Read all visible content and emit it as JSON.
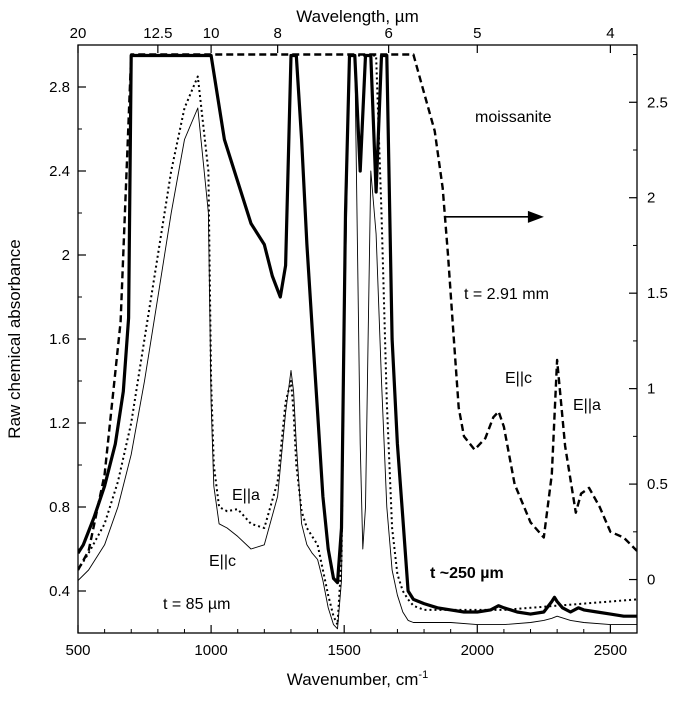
{
  "chart_data": {
    "type": "line",
    "title": "",
    "xlabel": "Wavenumber, cm",
    "xlabel_superscript": "-1",
    "x2label": "Wavelength, µm",
    "ylabel": "Raw chemical absorbance",
    "xlim": [
      500,
      2600
    ],
    "ylim_left": [
      0.2,
      3.0
    ],
    "ylim_right": [
      -0.28,
      2.8
    ],
    "grid": false,
    "x_ticks": [
      "500",
      "1000",
      "1500",
      "2000",
      "2500"
    ],
    "x_tick_values": [
      500,
      1000,
      1500,
      2000,
      2500
    ],
    "x2_ticks": [
      "20",
      "12.5",
      "10",
      "8",
      "6",
      "5",
      "4"
    ],
    "x2_tick_wavenumbers": [
      500,
      800,
      1000,
      1250,
      1667,
      2000,
      2500
    ],
    "y_left_ticks": [
      "0.4",
      "0.8",
      "1.2",
      "1.6",
      "2",
      "2.4",
      "2.8"
    ],
    "y_left_tick_values": [
      0.4,
      0.8,
      1.2,
      1.6,
      2.0,
      2.4,
      2.8
    ],
    "y_right_ticks": [
      "0",
      "0.5",
      "1",
      "1.5",
      "2",
      "2.5"
    ],
    "y_right_tick_values": [
      0,
      0.5,
      1.0,
      1.5,
      2.0,
      2.5
    ],
    "annotations": {
      "sample": "moissanite",
      "thick": "t = 2.91 mm",
      "medium": "t ~250 µm",
      "thin": "t = 85 µm",
      "ellc_top": "E||c",
      "ella_top": "E||a",
      "ella_bottom": "E||a",
      "ellc_bottom": "E||c"
    },
    "series": [
      {
        "style": "thick-solid",
        "axis": "left",
        "x": [
          500,
          520,
          560,
          600,
          640,
          670,
          690,
          700,
          1000,
          1050,
          1100,
          1150,
          1200,
          1230,
          1260,
          1280,
          1300,
          1310,
          1320,
          1340,
          1360,
          1380,
          1400,
          1420,
          1440,
          1460,
          1475,
          1490,
          1505,
          1520,
          1540,
          1560,
          1580,
          1600,
          1620,
          1640,
          1660,
          1680,
          1700,
          1720,
          1740,
          1760,
          1780,
          1800,
          1850,
          1900,
          1950,
          2000,
          2050,
          2080,
          2100,
          2150,
          2200,
          2250,
          2280,
          2290,
          2300,
          2320,
          2350,
          2380,
          2400,
          2450,
          2500,
          2550,
          2600
        ],
        "y": [
          0.58,
          0.62,
          0.75,
          0.9,
          1.1,
          1.35,
          1.7,
          2.95,
          2.95,
          2.55,
          2.35,
          2.15,
          2.05,
          1.9,
          1.8,
          1.95,
          2.95,
          2.95,
          2.95,
          2.55,
          2.05,
          1.65,
          1.25,
          0.85,
          0.6,
          0.46,
          0.44,
          0.7,
          2.2,
          2.95,
          2.95,
          2.4,
          2.95,
          2.95,
          2.3,
          2.95,
          2.95,
          1.6,
          1.1,
          0.75,
          0.4,
          0.36,
          0.35,
          0.34,
          0.32,
          0.31,
          0.3,
          0.3,
          0.31,
          0.33,
          0.32,
          0.3,
          0.29,
          0.3,
          0.35,
          0.37,
          0.35,
          0.32,
          0.3,
          0.32,
          0.31,
          0.3,
          0.29,
          0.28,
          0.28
        ]
      },
      {
        "style": "dashed",
        "axis": "right",
        "x": [
          500,
          540,
          600,
          660,
          700,
          1000,
          1100,
          1200,
          1280,
          1300,
          1350,
          1420,
          1470,
          1520,
          1620,
          1680,
          1760,
          1800,
          1840,
          1870,
          1890,
          1910,
          1930,
          1950,
          1990,
          2030,
          2060,
          2080,
          2100,
          2140,
          2200,
          2250,
          2280,
          2300,
          2330,
          2370,
          2390,
          2420,
          2460,
          2500,
          2550,
          2600
        ],
        "y": [
          0.05,
          0.15,
          0.55,
          1.35,
          2.75,
          2.75,
          2.75,
          2.75,
          2.75,
          2.75,
          2.75,
          2.75,
          2.75,
          2.75,
          2.75,
          2.75,
          2.75,
          2.55,
          2.35,
          2.05,
          1.7,
          1.3,
          0.9,
          0.75,
          0.68,
          0.74,
          0.85,
          0.88,
          0.8,
          0.5,
          0.3,
          0.22,
          0.55,
          1.15,
          0.7,
          0.35,
          0.45,
          0.48,
          0.38,
          0.25,
          0.22,
          0.15
        ]
      },
      {
        "style": "thin-solid",
        "axis": "left",
        "x": [
          500,
          540,
          600,
          650,
          700,
          750,
          800,
          850,
          900,
          950,
          990,
          1000,
          1010,
          1030,
          1060,
          1100,
          1150,
          1200,
          1250,
          1280,
          1300,
          1310,
          1320,
          1340,
          1360,
          1380,
          1400,
          1420,
          1440,
          1460,
          1475,
          1490,
          1505,
          1520,
          1540,
          1560,
          1570,
          1580,
          1590,
          1600,
          1620,
          1640,
          1660,
          1680,
          1700,
          1720,
          1740,
          1760,
          1800,
          1900,
          2000,
          2100,
          2200,
          2250,
          2280,
          2300,
          2350,
          2400,
          2500,
          2600
        ],
        "y": [
          0.45,
          0.5,
          0.62,
          0.8,
          1.05,
          1.4,
          1.8,
          2.2,
          2.55,
          2.7,
          2.2,
          1.3,
          0.9,
          0.72,
          0.7,
          0.66,
          0.6,
          0.62,
          0.85,
          1.25,
          1.45,
          1.35,
          1.1,
          0.72,
          0.62,
          0.58,
          0.55,
          0.45,
          0.32,
          0.24,
          0.22,
          0.45,
          1.9,
          2.95,
          2.95,
          1.1,
          0.6,
          0.8,
          1.6,
          2.4,
          2.1,
          1.4,
          0.8,
          0.5,
          0.38,
          0.3,
          0.26,
          0.25,
          0.25,
          0.25,
          0.24,
          0.24,
          0.25,
          0.26,
          0.27,
          0.28,
          0.26,
          0.25,
          0.24,
          0.24
        ]
      },
      {
        "style": "dotted",
        "axis": "left",
        "x": [
          500,
          540,
          600,
          650,
          700,
          750,
          800,
          850,
          900,
          950,
          990,
          1000,
          1010,
          1030,
          1060,
          1100,
          1150,
          1200,
          1250,
          1280,
          1300,
          1310,
          1320,
          1340,
          1360,
          1380,
          1400,
          1420,
          1440,
          1460,
          1475,
          1490,
          1505,
          1520,
          1540,
          1560,
          1580,
          1600,
          1620,
          1640,
          1660,
          1680,
          1700,
          1720,
          1740,
          1760,
          1800,
          1900,
          2000,
          2100,
          2200,
          2300,
          2400,
          2500,
          2600
        ],
        "y": [
          0.5,
          0.58,
          0.72,
          0.92,
          1.2,
          1.6,
          2.0,
          2.4,
          2.7,
          2.85,
          2.4,
          1.4,
          1.0,
          0.8,
          0.78,
          0.79,
          0.72,
          0.7,
          0.92,
          1.3,
          1.4,
          1.25,
          1.0,
          0.78,
          0.7,
          0.66,
          0.62,
          0.5,
          0.38,
          0.28,
          0.24,
          0.55,
          2.2,
          2.95,
          2.95,
          2.95,
          2.95,
          2.95,
          2.95,
          2.2,
          1.3,
          0.7,
          0.48,
          0.4,
          0.36,
          0.33,
          0.31,
          0.31,
          0.31,
          0.31,
          0.32,
          0.33,
          0.34,
          0.35,
          0.36
        ]
      }
    ],
    "arrow": {
      "direction": "right",
      "x_from": 1880,
      "x_to": 2100,
      "y_right": 1.9
    },
    "colors": {
      "line": "#000000",
      "background": "#ffffff",
      "axis": "#000000"
    }
  }
}
